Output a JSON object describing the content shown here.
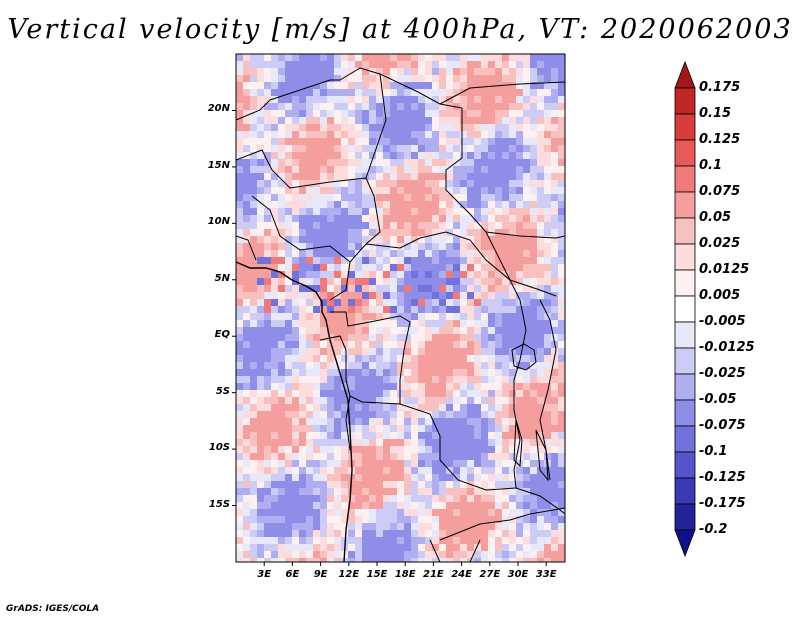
{
  "title": "Vertical velocity [m/s] at 400hPa, VT: 2020062003",
  "footer": "GrADS: IGES/COLA",
  "map": {
    "field": "Vertical velocity",
    "units": "m/s",
    "level": "400hPa",
    "valid_time": "2020062003",
    "lat_ticks": [
      "20N",
      "15N",
      "10N",
      "5N",
      "EQ",
      "5S",
      "10S",
      "15S"
    ],
    "lon_ticks": [
      "3E",
      "6E",
      "9E",
      "12E",
      "15E",
      "18E",
      "21E",
      "24E",
      "27E",
      "30E",
      "33E"
    ],
    "lat_values": [
      20,
      15,
      10,
      5,
      0,
      -5,
      -10,
      -15
    ],
    "lon_values": [
      3,
      6,
      9,
      12,
      15,
      18,
      21,
      24,
      27,
      30,
      33
    ],
    "lat_range": [
      -20,
      25
    ],
    "lon_range": [
      0,
      35
    ]
  },
  "colorbar": {
    "labels": [
      "0.175",
      "0.15",
      "0.125",
      "0.1",
      "0.075",
      "0.05",
      "0.025",
      "0.0125",
      "0.005",
      "-0.005",
      "-0.0125",
      "-0.025",
      "-0.05",
      "-0.075",
      "-0.1",
      "-0.125",
      "-0.175",
      "-0.2"
    ],
    "colors": [
      "#a01818",
      "#c02828",
      "#d83c3c",
      "#e85a5a",
      "#f07a7a",
      "#f59e9e",
      "#f9c0c0",
      "#fcdcdc",
      "#fdf0f0",
      "#ffffff",
      "#e8e8fb",
      "#ccccf6",
      "#aeaef0",
      "#8e8ee8",
      "#7272dc",
      "#5656cc",
      "#3a3ab4",
      "#22229a",
      "#10108a"
    ]
  }
}
